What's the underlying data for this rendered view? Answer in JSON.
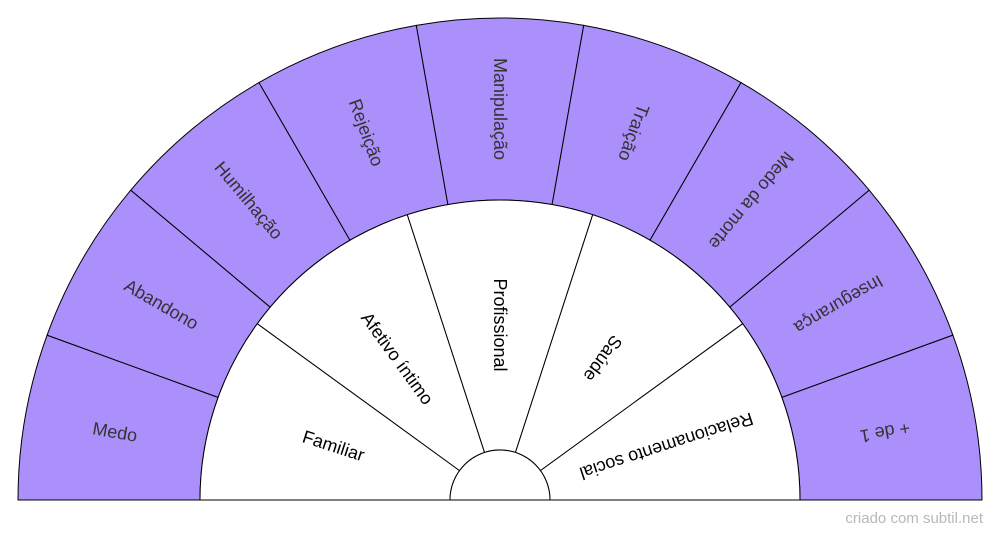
{
  "diagram": {
    "outer_ring": {
      "fill": "#ab8ffa",
      "text_color": "#333333",
      "segments": [
        "Medo",
        "Abandono",
        "Humilhação",
        "Rejeição",
        "Manipulação",
        "Traição",
        "Medo da morte",
        "Insegurança",
        "+ de 1"
      ]
    },
    "inner_ring": {
      "fill": "#ffffff",
      "text_color": "#000000",
      "segments": [
        "Familiar",
        "Afetivo íntimo",
        "Profissional",
        "Saúde",
        "Relacionamento social"
      ]
    }
  },
  "credit": "criado com subtil.net"
}
